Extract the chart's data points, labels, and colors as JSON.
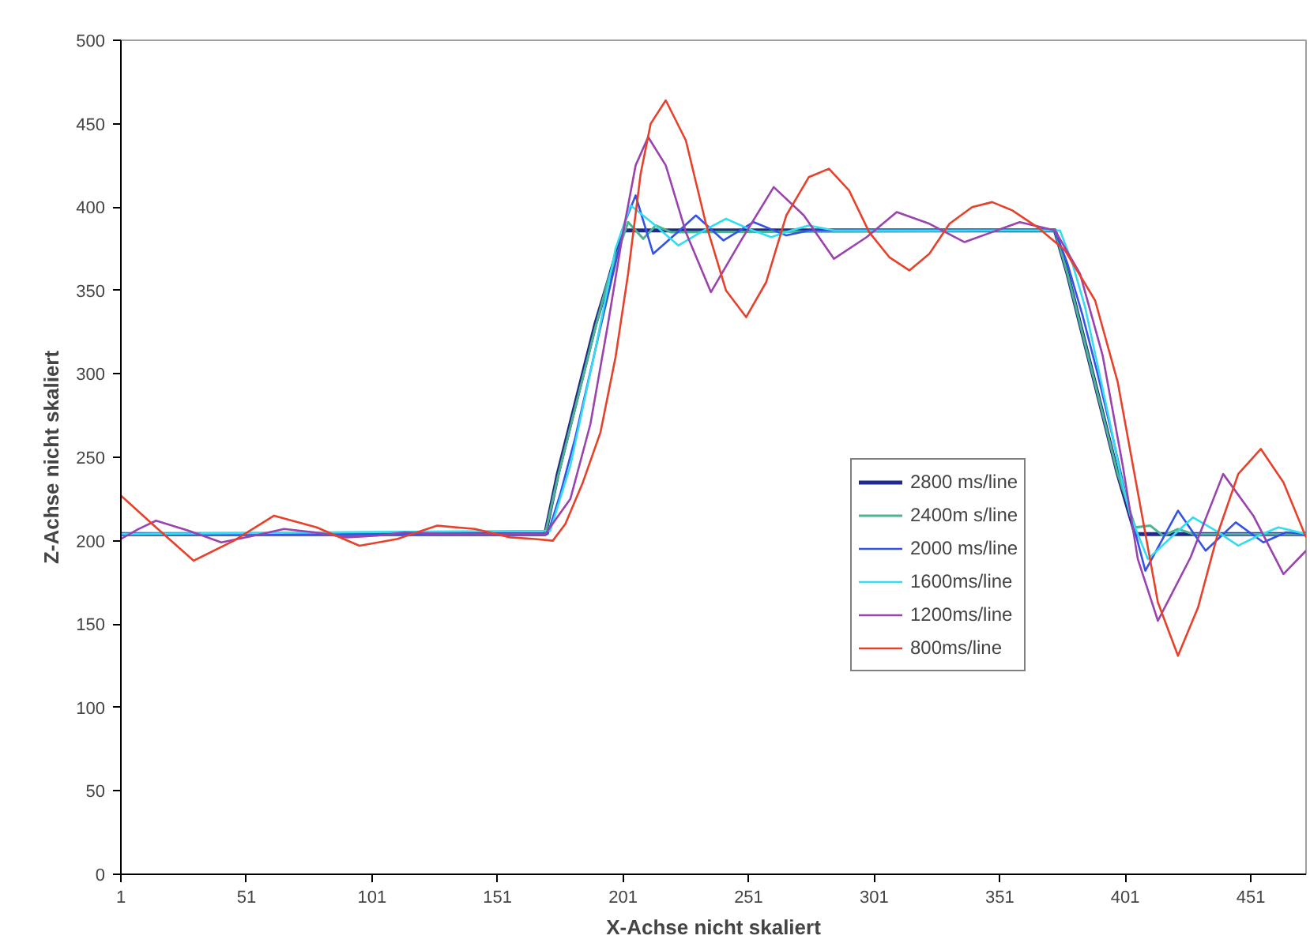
{
  "chart_data": {
    "type": "line",
    "xlabel": "X-Achse nicht skaliert",
    "ylabel": "Z-Achse nicht skaliert",
    "xlim": [
      1,
      473
    ],
    "ylim": [
      0,
      500
    ],
    "xticks": [
      1,
      51,
      101,
      151,
      201,
      251,
      301,
      351,
      401,
      451
    ],
    "yticks": [
      0,
      50,
      100,
      150,
      200,
      250,
      300,
      350,
      400,
      450,
      500
    ],
    "grid": false,
    "legend": "right",
    "marker": "none",
    "line_style": "solid",
    "series": [
      {
        "name": "2800 ms/line",
        "color": "#1f2a8a",
        "x": [
          1,
          170,
          175,
          180,
          185,
          190,
          195,
          201,
          373,
          378,
          383,
          388,
          393,
          398,
          405,
          473
        ],
        "values": [
          204,
          204,
          240,
          270,
          300,
          330,
          355,
          386,
          386,
          360,
          330,
          300,
          270,
          240,
          204,
          204
        ]
      },
      {
        "name": "2400m s/line",
        "color": "#4cb48e",
        "x": [
          1,
          170,
          175,
          180,
          185,
          190,
          195,
          203,
          209,
          214,
          220,
          373,
          378,
          383,
          388,
          393,
          398,
          405,
          411,
          416,
          422,
          428,
          473
        ],
        "values": [
          204,
          204,
          238,
          268,
          298,
          328,
          356,
          391,
          381,
          389,
          385,
          386,
          360,
          330,
          300,
          270,
          240,
          208,
          209,
          203,
          207,
          204,
          204
        ]
      },
      {
        "name": "2000 ms/line",
        "color": "#3652e6",
        "x": [
          1,
          171,
          176,
          182,
          187,
          192,
          197,
          202,
          206,
          213,
          222,
          230,
          241,
          253,
          266,
          275,
          373,
          378,
          384,
          390,
          396,
          402,
          409,
          422,
          433,
          445,
          456,
          465,
          473
        ],
        "values": [
          204,
          204,
          228,
          262,
          295,
          328,
          360,
          392,
          407,
          372,
          384,
          395,
          380,
          391,
          383,
          386,
          386,
          366,
          335,
          300,
          262,
          222,
          182,
          218,
          194,
          211,
          199,
          205,
          204
        ]
      },
      {
        "name": "1600ms/line",
        "color": "#33dcee",
        "x": [
          1,
          172,
          180,
          185,
          190,
          194,
          198,
          204,
          213,
          223,
          232,
          242,
          251,
          260,
          268,
          275,
          285,
          375,
          380,
          385,
          390,
          395,
          399,
          403,
          410,
          420,
          428,
          437,
          446,
          454,
          462,
          473
        ],
        "values": [
          204,
          206,
          245,
          280,
          315,
          345,
          375,
          401,
          390,
          377,
          385,
          393,
          387,
          382,
          386,
          389,
          386,
          386,
          366,
          340,
          305,
          270,
          240,
          215,
          189,
          203,
          214,
          206,
          197,
          203,
          208,
          204
        ]
      },
      {
        "name": "1200ms/line",
        "color": "#9a42ad",
        "x": [
          1,
          8,
          15,
          28,
          41,
          54,
          66,
          78,
          91,
          103,
          114,
          130,
          150,
          170,
          180,
          188,
          195,
          201,
          206,
          211,
          218,
          226,
          236,
          248,
          261,
          273,
          285,
          298,
          310,
          323,
          337,
          348,
          359,
          373,
          383,
          392,
          400,
          406,
          414,
          427,
          440,
          452,
          464,
          473
        ],
        "values": [
          201,
          207,
          212,
          206,
          199,
          203,
          207,
          205,
          202,
          203,
          205,
          204,
          204,
          204,
          225,
          270,
          330,
          385,
          425,
          442,
          425,
          385,
          349,
          380,
          412,
          395,
          369,
          382,
          397,
          390,
          379,
          385,
          391,
          386,
          360,
          311,
          245,
          189,
          152,
          190,
          240,
          215,
          180,
          194
        ]
      },
      {
        "name": "800ms/line",
        "color": "#e8412b",
        "x": [
          1,
          15,
          30,
          46,
          62,
          79,
          96,
          111,
          127,
          142,
          156,
          166,
          173,
          178,
          185,
          192,
          198,
          203,
          208,
          212,
          218,
          226,
          234,
          242,
          250,
          258,
          266,
          275,
          283,
          291,
          299,
          307,
          315,
          323,
          331,
          340,
          348,
          356,
          366,
          377,
          389,
          398,
          406,
          414,
          422,
          430,
          438,
          446,
          455,
          464,
          473
        ],
        "values": [
          227,
          208,
          188,
          200,
          215,
          208,
          197,
          201,
          209,
          207,
          202,
          201,
          200,
          210,
          235,
          265,
          310,
          360,
          420,
          450,
          464,
          440,
          390,
          350,
          334,
          355,
          395,
          418,
          423,
          410,
          385,
          370,
          362,
          372,
          390,
          400,
          403,
          398,
          388,
          374,
          344,
          295,
          229,
          163,
          131,
          160,
          205,
          240,
          255,
          235,
          202
        ]
      }
    ]
  }
}
